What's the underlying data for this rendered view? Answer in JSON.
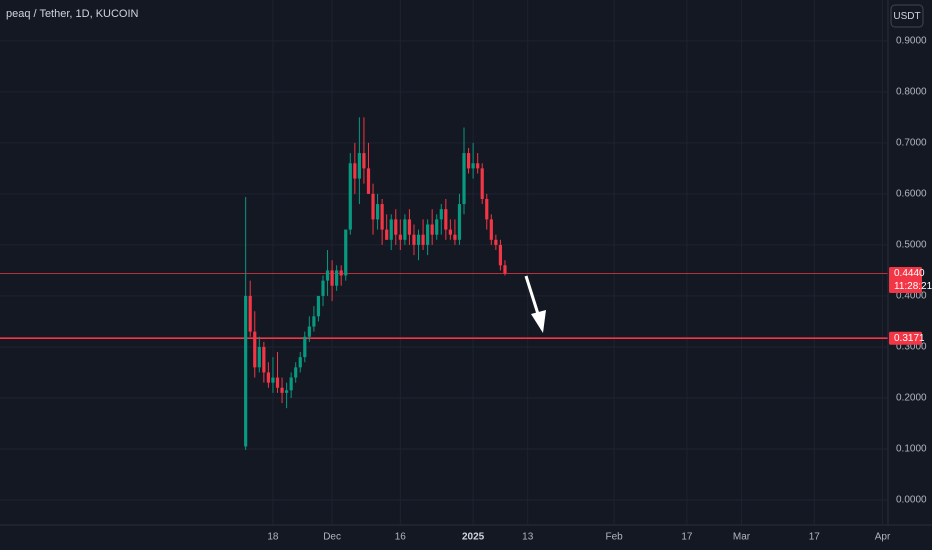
{
  "chart_data": {
    "type": "candlestick",
    "title": "peaq / Tether, 1D, KUCOIN",
    "currency": "USDT",
    "up_color": "#089981",
    "down_color": "#f23645",
    "x": [
      -6,
      -5,
      -4,
      -3,
      -2,
      -1,
      0,
      1,
      2,
      3,
      4,
      5,
      6,
      7,
      8,
      9,
      10,
      11,
      12,
      13,
      14,
      15,
      16,
      17,
      18,
      19,
      20,
      21,
      22,
      23,
      24,
      25,
      26,
      27,
      28,
      29,
      30,
      31,
      32,
      33,
      34,
      35,
      36,
      37,
      38,
      39,
      40,
      41,
      42,
      43,
      44,
      45,
      46,
      47,
      48,
      49,
      50,
      51
    ],
    "open": [
      0.105,
      0.4,
      0.33,
      0.26,
      0.3,
      0.25,
      0.23,
      0.24,
      0.22,
      0.21,
      0.215,
      0.24,
      0.26,
      0.28,
      0.32,
      0.34,
      0.36,
      0.4,
      0.43,
      0.45,
      0.42,
      0.45,
      0.44,
      0.53,
      0.66,
      0.63,
      0.68,
      0.65,
      0.6,
      0.55,
      0.58,
      0.53,
      0.51,
      0.55,
      0.52,
      0.51,
      0.55,
      0.52,
      0.5,
      0.52,
      0.5,
      0.54,
      0.52,
      0.55,
      0.57,
      0.53,
      0.52,
      0.51,
      0.58,
      0.68,
      0.65,
      0.66,
      0.65,
      0.59,
      0.55,
      0.51,
      0.5,
      0.46
    ],
    "high": [
      0.594,
      0.43,
      0.37,
      0.32,
      0.31,
      0.27,
      0.28,
      0.29,
      0.24,
      0.23,
      0.25,
      0.27,
      0.29,
      0.33,
      0.36,
      0.38,
      0.4,
      0.44,
      0.49,
      0.47,
      0.46,
      0.46,
      0.53,
      0.68,
      0.7,
      0.75,
      0.75,
      0.7,
      0.62,
      0.6,
      0.59,
      0.56,
      0.56,
      0.57,
      0.55,
      0.56,
      0.57,
      0.54,
      0.53,
      0.55,
      0.55,
      0.57,
      0.56,
      0.58,
      0.59,
      0.55,
      0.55,
      0.6,
      0.73,
      0.69,
      0.7,
      0.68,
      0.66,
      0.6,
      0.56,
      0.52,
      0.51,
      0.47
    ],
    "low": [
      0.098,
      0.32,
      0.24,
      0.25,
      0.23,
      0.22,
      0.21,
      0.21,
      0.19,
      0.18,
      0.2,
      0.23,
      0.25,
      0.27,
      0.31,
      0.33,
      0.35,
      0.38,
      0.4,
      0.39,
      0.41,
      0.42,
      0.43,
      0.52,
      0.6,
      0.58,
      0.62,
      0.6,
      0.52,
      0.53,
      0.5,
      0.51,
      0.49,
      0.5,
      0.49,
      0.5,
      0.5,
      0.48,
      0.47,
      0.49,
      0.48,
      0.5,
      0.51,
      0.52,
      0.51,
      0.51,
      0.5,
      0.5,
      0.56,
      0.64,
      0.63,
      0.64,
      0.58,
      0.53,
      0.5,
      0.49,
      0.45,
      0.44
    ],
    "close": [
      0.4,
      0.33,
      0.26,
      0.3,
      0.25,
      0.23,
      0.24,
      0.22,
      0.21,
      0.215,
      0.24,
      0.26,
      0.28,
      0.32,
      0.34,
      0.36,
      0.4,
      0.43,
      0.45,
      0.42,
      0.45,
      0.44,
      0.53,
      0.66,
      0.63,
      0.68,
      0.65,
      0.6,
      0.55,
      0.58,
      0.53,
      0.51,
      0.55,
      0.52,
      0.51,
      0.55,
      0.52,
      0.5,
      0.52,
      0.5,
      0.54,
      0.52,
      0.55,
      0.57,
      0.53,
      0.52,
      0.51,
      0.58,
      0.68,
      0.65,
      0.66,
      0.65,
      0.59,
      0.55,
      0.51,
      0.5,
      0.46,
      0.444
    ],
    "xlim": [
      -60,
      135.2
    ],
    "xticks": [
      {
        "value": 0,
        "label": "18"
      },
      {
        "value": 13,
        "label": "Dec"
      },
      {
        "value": 28,
        "label": "16"
      },
      {
        "value": 44,
        "label": "2025"
      },
      {
        "value": 56,
        "label": "13"
      },
      {
        "value": 75,
        "label": "Feb"
      },
      {
        "value": 91,
        "label": "17"
      },
      {
        "value": 103,
        "label": "Mar"
      },
      {
        "value": 119,
        "label": "17"
      },
      {
        "value": 134,
        "label": "Apr"
      }
    ],
    "ylim": [
      -0.049,
      0.98
    ],
    "yticks": [
      {
        "value": 0,
        "label": "0.0000"
      },
      {
        "value": 0.1,
        "label": "0.1000"
      },
      {
        "value": 0.2,
        "label": "0.2000"
      },
      {
        "value": 0.3,
        "label": "0.3000"
      },
      {
        "value": 0.4,
        "label": "0.4000"
      },
      {
        "value": 0.5,
        "label": "0.5000"
      },
      {
        "value": 0.6,
        "label": "0.6000"
      },
      {
        "value": 0.7,
        "label": "0.7000"
      },
      {
        "value": 0.8,
        "label": "0.8000"
      },
      {
        "value": 0.9,
        "label": "0.9000"
      }
    ],
    "grid": true,
    "price_lines": [
      {
        "value": 0.444,
        "label": "0.4440",
        "countdown": "11:28:21",
        "color": "#f23645"
      },
      {
        "value": 0.3171,
        "label": "0.3171",
        "color": "#f23645"
      }
    ]
  }
}
